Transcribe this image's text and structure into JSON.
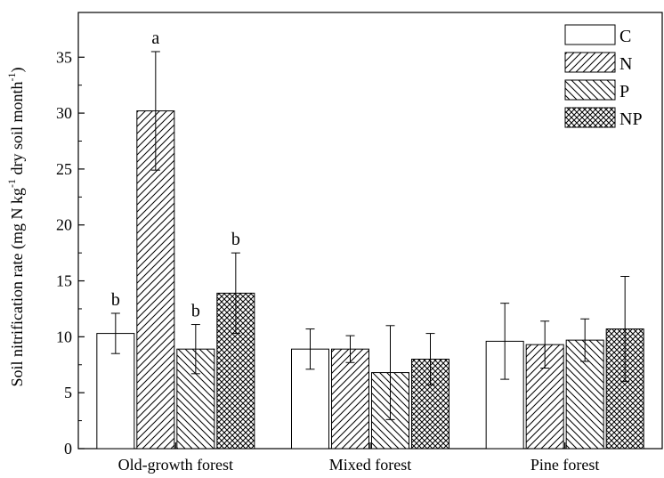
{
  "chart_data": {
    "type": "bar",
    "categories": [
      "Old-growth forest",
      "Mixed forest",
      "Pine forest"
    ],
    "ylabel_main": "Soil nitrification rate (mg N kg",
    "ylabel_sup1": "-1",
    "ylabel_mid": " dry soil month",
    "ylabel_sup2": "-1",
    "ylabel_end": ")",
    "ylim": [
      0,
      39
    ],
    "yticks": [
      0,
      5,
      10,
      15,
      20,
      25,
      30,
      35
    ],
    "legend_position": "top-right",
    "series": [
      {
        "name": "C",
        "pattern": "none",
        "values": [
          10.3,
          8.9,
          9.6
        ],
        "errors": [
          1.8,
          1.8,
          3.4
        ],
        "labels": [
          "b",
          "",
          ""
        ]
      },
      {
        "name": "N",
        "pattern": "diag-up",
        "values": [
          30.2,
          8.9,
          9.3
        ],
        "errors": [
          5.3,
          1.2,
          2.1
        ],
        "labels": [
          "a",
          "",
          ""
        ]
      },
      {
        "name": "P",
        "pattern": "diag-down",
        "values": [
          8.9,
          6.8,
          9.7
        ],
        "errors": [
          2.2,
          4.2,
          1.9
        ],
        "labels": [
          "b",
          "",
          ""
        ]
      },
      {
        "name": "NP",
        "pattern": "crosshatch",
        "values": [
          13.9,
          8.0,
          10.7
        ],
        "errors": [
          3.6,
          2.3,
          4.7
        ],
        "labels": [
          "b",
          "",
          ""
        ]
      }
    ]
  }
}
